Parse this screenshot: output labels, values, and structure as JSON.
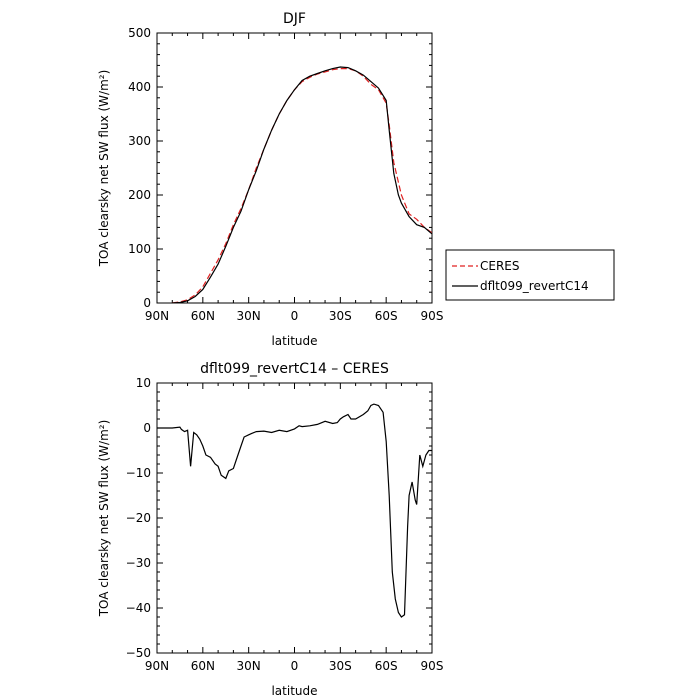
{
  "chart_data": [
    {
      "type": "line",
      "title": "DJF",
      "xlabel": "latitude",
      "ylabel": "TOA clearsky net SW flux (W/m²)",
      "xlim": [
        90,
        -90
      ],
      "ylim": [
        0,
        500
      ],
      "x_ticks": [
        90,
        60,
        30,
        0,
        -30,
        -60,
        -90
      ],
      "x_tick_labels": [
        "90N",
        "60N",
        "30N",
        "0",
        "30S",
        "60S",
        "90S"
      ],
      "y_ticks": [
        0,
        100,
        200,
        300,
        400,
        500
      ],
      "y_tick_labels": [
        "0",
        "100",
        "200",
        "300",
        "400",
        "500"
      ],
      "grid": false,
      "legend": {
        "placement": "right",
        "entries": [
          {
            "label": "CERES",
            "color": "#e02020",
            "dash": "dashed"
          },
          {
            "label": "dflt099_revertC14",
            "color": "#000000",
            "dash": "solid"
          }
        ]
      },
      "series": [
        {
          "name": "CERES",
          "color": "#e02020",
          "dash": "dashed",
          "x": [
            80,
            75,
            70,
            65,
            60,
            55,
            50,
            45,
            40,
            35,
            30,
            25,
            20,
            15,
            10,
            5,
            0,
            -5,
            -10,
            -15,
            -20,
            -25,
            -30,
            -35,
            -40,
            -45,
            -50,
            -55,
            -60,
            -62,
            -65,
            -70,
            -75,
            -80,
            -85,
            -90
          ],
          "y": [
            0,
            2,
            6,
            15,
            30,
            55,
            80,
            110,
            145,
            175,
            210,
            250,
            285,
            320,
            350,
            375,
            395,
            410,
            418,
            424,
            428,
            432,
            434,
            434,
            430,
            420,
            405,
            395,
            370,
            330,
            260,
            200,
            165,
            155,
            140,
            130
          ]
        },
        {
          "name": "dflt099_revertC14",
          "color": "#000000",
          "dash": "solid",
          "x": [
            80,
            75,
            70,
            65,
            60,
            55,
            50,
            45,
            40,
            35,
            30,
            25,
            20,
            15,
            10,
            5,
            0,
            -5,
            -10,
            -15,
            -20,
            -25,
            -30,
            -35,
            -40,
            -45,
            -50,
            -55,
            -60,
            -62,
            -65,
            -68,
            -70,
            -73,
            -75,
            -80,
            -85,
            -90
          ],
          "y": [
            0,
            1,
            4,
            12,
            25,
            48,
            72,
            105,
            140,
            170,
            210,
            245,
            285,
            320,
            350,
            375,
            395,
            412,
            420,
            425,
            430,
            434,
            437,
            436,
            430,
            422,
            410,
            398,
            375,
            320,
            240,
            200,
            185,
            170,
            160,
            145,
            140,
            128
          ]
        }
      ]
    },
    {
      "type": "line",
      "title": "dflt099_revertC14 – CERES",
      "xlabel": "latitude",
      "ylabel": "TOA clearsky net SW flux (W/m²)",
      "xlim": [
        90,
        -90
      ],
      "ylim": [
        -50,
        10
      ],
      "x_ticks": [
        90,
        60,
        30,
        0,
        -30,
        -60,
        -90
      ],
      "x_tick_labels": [
        "90N",
        "60N",
        "30N",
        "0",
        "30S",
        "60S",
        "90S"
      ],
      "y_ticks": [
        -50,
        -40,
        -30,
        -20,
        -10,
        0,
        10
      ],
      "y_tick_labels": [
        "−50",
        "−40",
        "−30",
        "−20",
        "−10",
        "0",
        "10"
      ],
      "grid": false,
      "series": [
        {
          "color": "#000000",
          "dash": "solid",
          "x": [
            90,
            80,
            75,
            74,
            72,
            70,
            68,
            66,
            64,
            62,
            60,
            58,
            55,
            52,
            50,
            48,
            45,
            43,
            40,
            38,
            35,
            33,
            30,
            28,
            25,
            20,
            15,
            10,
            5,
            0,
            -3,
            -5,
            -10,
            -15,
            -20,
            -25,
            -28,
            -30,
            -32,
            -35,
            -37,
            -40,
            -45,
            -48,
            -50,
            -52,
            -55,
            -58,
            -60,
            -62,
            -64,
            -66,
            -68,
            -70,
            -72,
            -74,
            -75,
            -77,
            -79,
            -80,
            -82,
            -84,
            -86,
            -88,
            -90
          ],
          "y": [
            0,
            0,
            0.2,
            -0.3,
            -0.8,
            -0.5,
            -8.5,
            -1,
            -1.5,
            -2.5,
            -4,
            -6,
            -6.5,
            -8,
            -8.5,
            -10.5,
            -11.2,
            -9.5,
            -9,
            -7,
            -4,
            -2,
            -1.5,
            -1.2,
            -0.8,
            -0.7,
            -1,
            -0.5,
            -0.8,
            -0.2,
            0.5,
            0.3,
            0.5,
            0.8,
            1.5,
            1,
            1.2,
            2,
            2.5,
            3,
            2,
            2,
            3,
            3.8,
            5,
            5.3,
            5,
            3.5,
            -3,
            -15,
            -32,
            -38,
            -41,
            -42,
            -41.5,
            -22,
            -15,
            -12,
            -16,
            -17,
            -6,
            -8.5,
            -6,
            -5,
            -5
          ]
        }
      ]
    }
  ]
}
